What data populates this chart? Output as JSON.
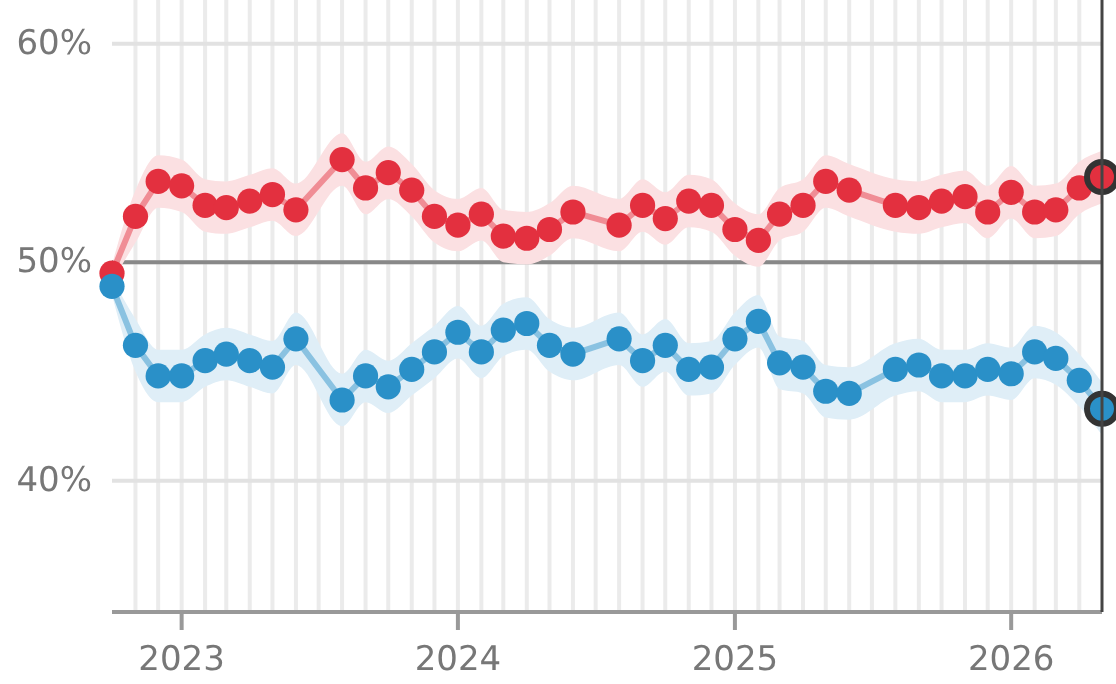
{
  "chart_data": {
    "type": "line",
    "x": [
      "2022-10",
      "2022-11",
      "2022-12",
      "2023-01",
      "2023-02",
      "2023-03",
      "2023-04",
      "2023-05",
      "2023-06",
      "2023-08",
      "2023-09",
      "2023-10",
      "2023-11",
      "2023-12",
      "2024-01",
      "2024-02",
      "2024-03",
      "2024-04",
      "2024-05",
      "2024-06",
      "2024-08",
      "2024-09",
      "2024-10",
      "2024-11",
      "2024-12",
      "2025-01",
      "2025-02",
      "2025-03",
      "2025-04",
      "2025-05",
      "2025-06",
      "2025-08",
      "2025-09",
      "2025-10",
      "2025-11",
      "2025-12",
      "2026-01",
      "2026-02",
      "2026-03",
      "2026-04",
      "2026-05"
    ],
    "series": [
      {
        "color": "#e3303f",
        "values": [
          49.5,
          52.1,
          53.7,
          53.5,
          52.6,
          52.5,
          52.8,
          53.1,
          52.4,
          54.7,
          53.4,
          54.1,
          53.3,
          52.1,
          51.7,
          52.2,
          51.2,
          51.1,
          51.5,
          52.3,
          51.7,
          52.6,
          52.0,
          52.8,
          52.6,
          51.5,
          51.0,
          52.2,
          52.6,
          53.7,
          53.3,
          52.6,
          52.5,
          52.8,
          53.0,
          52.3,
          53.2,
          52.3,
          52.4,
          53.4,
          53.9
        ],
        "lower": [
          49.1,
          50.9,
          52.5,
          52.3,
          51.4,
          51.3,
          51.6,
          51.9,
          51.2,
          53.5,
          52.2,
          52.9,
          52.1,
          50.9,
          50.5,
          51.0,
          50.0,
          49.9,
          50.3,
          51.1,
          50.5,
          51.4,
          50.8,
          51.6,
          51.4,
          50.3,
          49.8,
          51.0,
          51.4,
          52.5,
          52.1,
          51.4,
          51.3,
          51.6,
          51.8,
          51.1,
          52.0,
          51.1,
          51.2,
          52.2,
          52.7
        ],
        "upper": [
          49.9,
          53.3,
          54.9,
          54.7,
          53.8,
          53.7,
          54.0,
          54.3,
          53.6,
          55.9,
          54.6,
          55.3,
          54.5,
          53.3,
          52.9,
          53.4,
          52.4,
          52.3,
          52.7,
          53.5,
          52.9,
          53.8,
          53.2,
          54.0,
          53.8,
          52.7,
          52.2,
          53.4,
          53.8,
          54.9,
          54.5,
          53.8,
          53.7,
          54.0,
          54.2,
          53.5,
          54.4,
          53.5,
          53.6,
          54.6,
          55.1
        ]
      },
      {
        "color": "#2a90c8",
        "values": [
          48.9,
          46.2,
          44.8,
          44.8,
          45.5,
          45.8,
          45.5,
          45.2,
          46.5,
          43.7,
          44.8,
          44.3,
          45.1,
          45.9,
          46.8,
          45.9,
          46.9,
          47.2,
          46.2,
          45.8,
          46.5,
          45.5,
          46.2,
          45.1,
          45.2,
          46.5,
          47.3,
          45.4,
          45.2,
          44.1,
          44.0,
          45.1,
          45.3,
          44.8,
          44.8,
          45.1,
          44.9,
          45.9,
          45.6,
          44.6,
          43.3
        ],
        "lower": [
          48.5,
          45.0,
          43.6,
          43.6,
          44.3,
          44.6,
          44.3,
          44.0,
          45.3,
          42.5,
          43.6,
          43.1,
          43.9,
          44.7,
          45.6,
          44.7,
          45.7,
          46.0,
          45.0,
          44.6,
          45.3,
          44.3,
          45.0,
          43.9,
          44.0,
          45.3,
          46.1,
          44.2,
          44.0,
          42.9,
          42.8,
          43.9,
          44.1,
          43.6,
          43.6,
          43.9,
          43.7,
          44.7,
          44.4,
          43.4,
          42.1
        ],
        "upper": [
          49.3,
          47.4,
          46.0,
          46.0,
          46.7,
          47.0,
          46.7,
          46.4,
          47.7,
          44.9,
          46.0,
          45.5,
          46.3,
          47.1,
          48.0,
          47.1,
          48.1,
          48.4,
          47.4,
          47.0,
          47.7,
          46.7,
          47.4,
          46.3,
          46.4,
          47.7,
          48.5,
          46.6,
          46.4,
          45.3,
          45.2,
          46.3,
          46.5,
          46.0,
          46.0,
          46.3,
          46.1,
          47.1,
          46.8,
          45.8,
          44.5
        ]
      }
    ],
    "xlim": [
      "2022-10",
      "2026-05"
    ],
    "xticks": [
      {
        "value": "2022-11",
        "label": null
      },
      {
        "value": "2022-12",
        "label": null
      },
      {
        "value": "2023-01",
        "label": "2023"
      },
      {
        "value": "2023-02",
        "label": null
      },
      {
        "value": "2023-03",
        "label": null
      },
      {
        "value": "2023-04",
        "label": null
      },
      {
        "value": "2023-05",
        "label": null
      },
      {
        "value": "2023-06",
        "label": null
      },
      {
        "value": "2023-07",
        "label": null
      },
      {
        "value": "2023-08",
        "label": null
      },
      {
        "value": "2023-09",
        "label": null
      },
      {
        "value": "2023-10",
        "label": null
      },
      {
        "value": "2023-11",
        "label": null
      },
      {
        "value": "2023-12",
        "label": null
      },
      {
        "value": "2024-01",
        "label": "2024"
      },
      {
        "value": "2024-02",
        "label": null
      },
      {
        "value": "2024-03",
        "label": null
      },
      {
        "value": "2024-04",
        "label": null
      },
      {
        "value": "2024-05",
        "label": null
      },
      {
        "value": "2024-06",
        "label": null
      },
      {
        "value": "2024-07",
        "label": null
      },
      {
        "value": "2024-08",
        "label": null
      },
      {
        "value": "2024-09",
        "label": null
      },
      {
        "value": "2024-10",
        "label": null
      },
      {
        "value": "2024-11",
        "label": null
      },
      {
        "value": "2024-12",
        "label": null
      },
      {
        "value": "2025-01",
        "label": "2025"
      },
      {
        "value": "2025-02",
        "label": null
      },
      {
        "value": "2025-03",
        "label": null
      },
      {
        "value": "2025-04",
        "label": null
      },
      {
        "value": "2025-05",
        "label": null
      },
      {
        "value": "2025-06",
        "label": null
      },
      {
        "value": "2025-07",
        "label": null
      },
      {
        "value": "2025-08",
        "label": null
      },
      {
        "value": "2025-09",
        "label": null
      },
      {
        "value": "2025-10",
        "label": null
      },
      {
        "value": "2025-11",
        "label": null
      },
      {
        "value": "2025-12",
        "label": null
      },
      {
        "value": "2026-01",
        "label": "2026"
      },
      {
        "value": "2026-02",
        "label": null
      },
      {
        "value": "2026-03",
        "label": null
      },
      {
        "value": "2026-04",
        "label": null
      }
    ],
    "ylim": [
      34,
      62
    ],
    "yticks": [
      {
        "value": 40,
        "label": "40%"
      },
      {
        "value": 50,
        "label": "50%"
      },
      {
        "value": 60,
        "label": "60%"
      }
    ],
    "ref_lines": [
      {
        "axis": "y",
        "value": 50,
        "color": "#888888"
      }
    ],
    "grid": true,
    "marker": "circle",
    "line_style": "solid"
  }
}
